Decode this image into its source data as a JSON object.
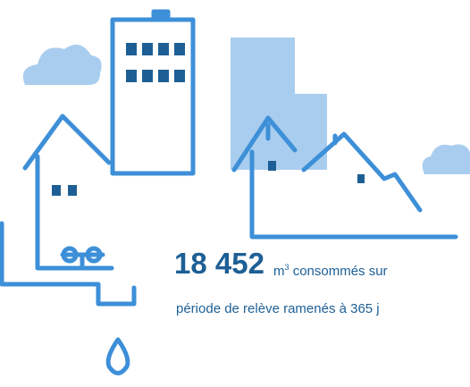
{
  "headline": {
    "number": "18 452",
    "unit": "m",
    "exponent": "3",
    "text": "consommés sur",
    "line2": "période de relève ramenés à 365 j"
  }
}
